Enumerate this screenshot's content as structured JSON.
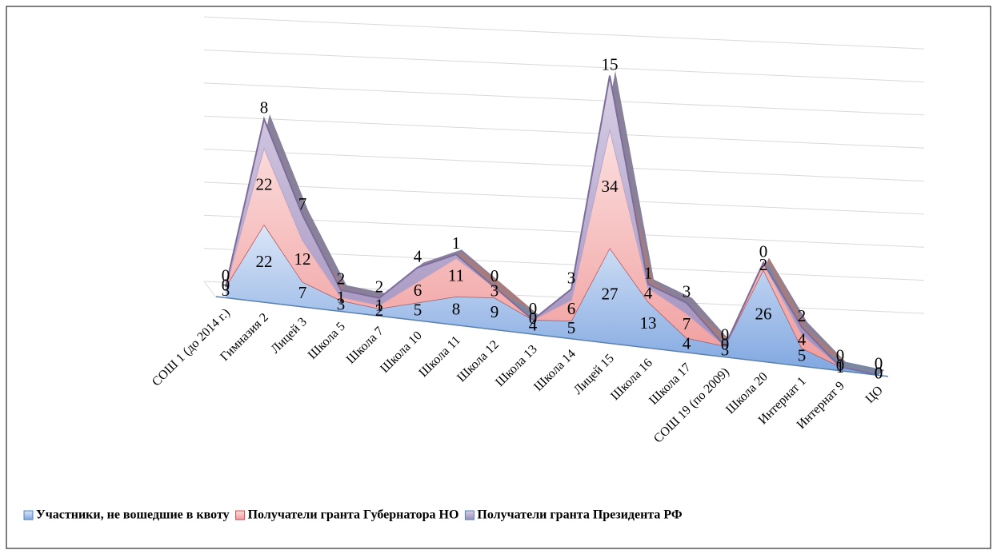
{
  "chart_data": {
    "type": "area3d",
    "categories": [
      "СОШ 1 (до 2014 г.)",
      "Гимназия 2",
      "Лицей 3",
      "Школа  5",
      "Школа  7",
      "Школа  10",
      "Школа  11",
      "Школа 12",
      "Школа 13",
      "Школа 14",
      "Лицей  15",
      "Школа  16",
      "Школа  17",
      "СОШ 19 (по 2009)",
      "Школа 20",
      "Интернат 1",
      "Интернат 9",
      "ЦО"
    ],
    "series": [
      {
        "name": "Участники, не вошедшие в квоту",
        "color": "#a9c4eb",
        "values": [
          3,
          22,
          7,
          3,
          2,
          5,
          8,
          9,
          4,
          5,
          27,
          13,
          4,
          3,
          26,
          5,
          1,
          0
        ]
      },
      {
        "name": "Получатели гранта Губернатора НО",
        "color": "#f3b2b2",
        "values": [
          0,
          22,
          12,
          1,
          1,
          6,
          11,
          3,
          0,
          6,
          34,
          4,
          7,
          0,
          2,
          4,
          0,
          0
        ]
      },
      {
        "name": "Получатели гранта Президента РФ",
        "color": "#b3a5cb",
        "values": [
          0,
          8,
          7,
          2,
          2,
          4,
          1,
          0,
          0,
          3,
          15,
          1,
          3,
          0,
          0,
          2,
          0,
          0
        ]
      }
    ],
    "ylim": [
      0,
      80
    ],
    "yticks": [
      0,
      10,
      20,
      30,
      40,
      50,
      60,
      70,
      80
    ],
    "grid": true,
    "legend": "bottom"
  }
}
